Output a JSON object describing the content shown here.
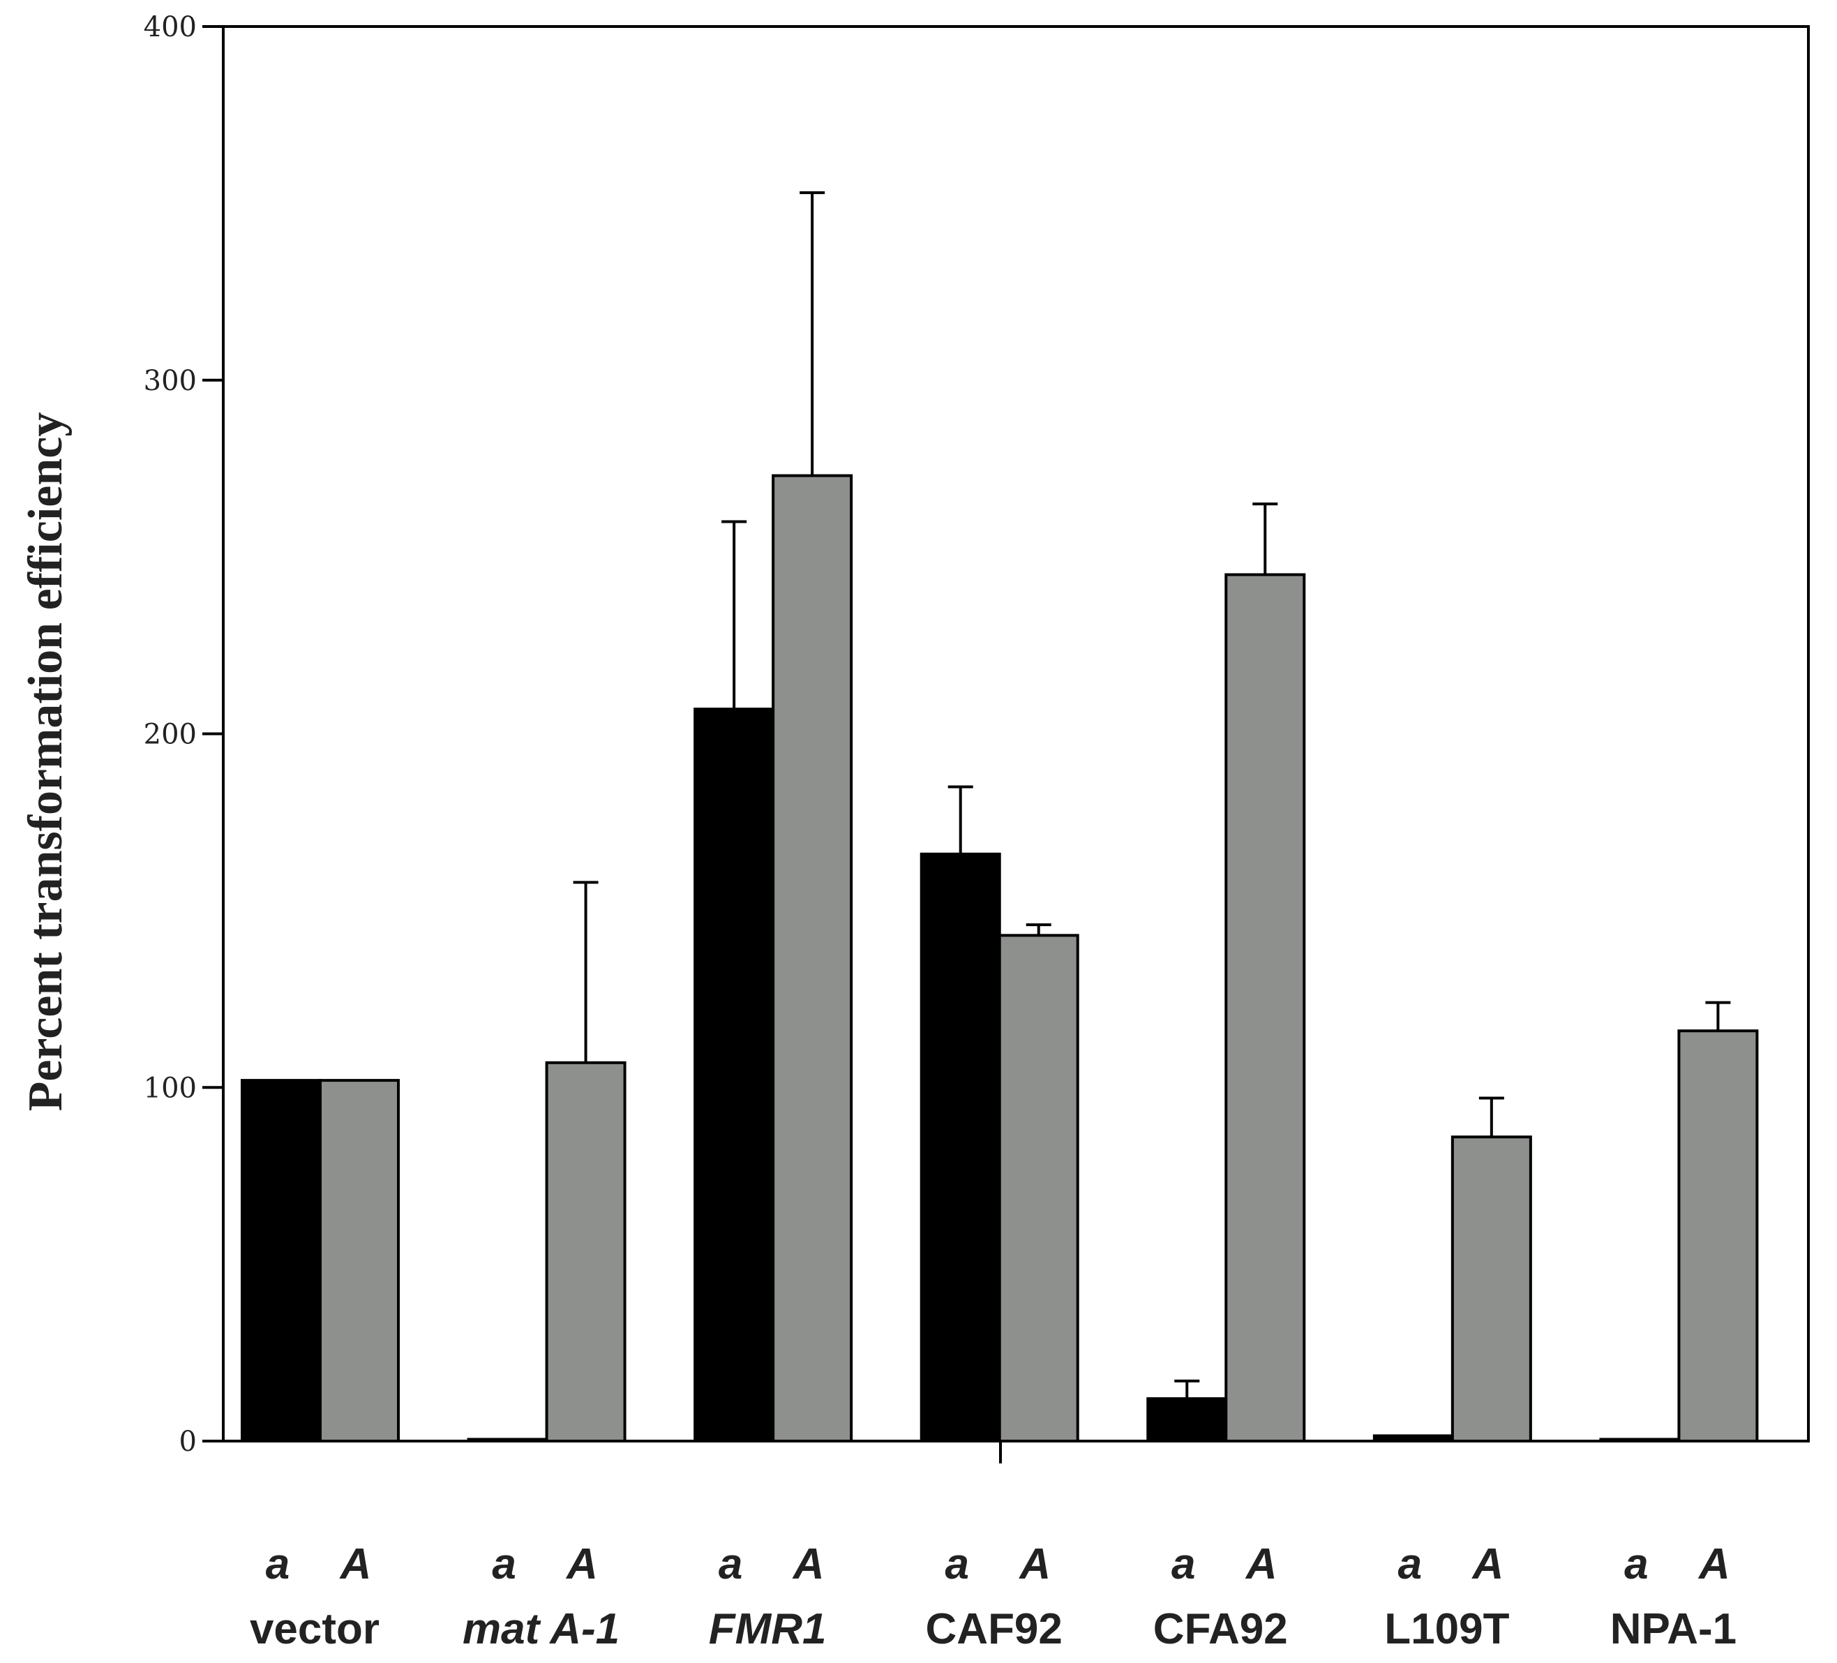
{
  "chart_data": {
    "type": "bar",
    "ylabel": "Percent transformation efficiency",
    "ylim": [
      0,
      400
    ],
    "yticks": [
      "0",
      "100",
      "200",
      "300",
      "400"
    ],
    "categories": [
      "vector",
      "mat A-1",
      "FMR1",
      "CAF92",
      "CFA92",
      "L109T",
      "NPA-1"
    ],
    "category_labels": [
      {
        "parts": [
          {
            "text": "vector",
            "italic": false
          }
        ]
      },
      {
        "parts": [
          {
            "text": "mat",
            "italic": true
          },
          {
            "text": "A-1",
            "italic": true
          }
        ]
      },
      {
        "parts": [
          {
            "text": "FMR1",
            "italic": true
          }
        ]
      },
      {
        "parts": [
          {
            "text": "CAF92",
            "italic": false
          }
        ]
      },
      {
        "parts": [
          {
            "text": "CFA92",
            "italic": false
          }
        ]
      },
      {
        "parts": [
          {
            "text": "L109T",
            "italic": false
          }
        ]
      },
      {
        "parts": [
          {
            "text": "NPA-1",
            "italic": false
          }
        ]
      }
    ],
    "mating_type_labels": [
      "a",
      "A"
    ],
    "series": [
      {
        "label": "a",
        "color": "#000000",
        "values": [
          102,
          0.5,
          207,
          166,
          12,
          1.5,
          0.5
        ],
        "err_upper": [
          102,
          0.5,
          260,
          185,
          17,
          1.5,
          0.5
        ]
      },
      {
        "label": "A",
        "color": "#8e908d",
        "values": [
          102,
          107,
          273,
          143,
          245,
          86,
          116
        ],
        "err_upper": [
          102,
          158,
          353,
          146,
          265,
          97,
          124
        ]
      }
    ],
    "grid": false,
    "legend": "none"
  }
}
